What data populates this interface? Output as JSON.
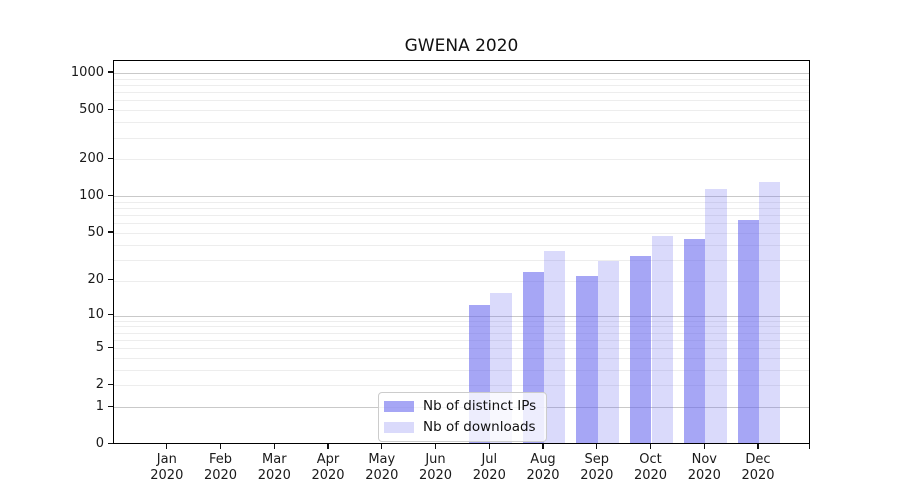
{
  "title": "GWENA 2020",
  "chart_data": {
    "type": "bar",
    "title": "GWENA 2020",
    "xlabel": "",
    "ylabel": "",
    "y_scale": "symlog (position proportional to ln(1+v))",
    "ylim": [
      0,
      1250
    ],
    "grid": "both (major lines at powers of 10, faint minors at 2-9 per decade)",
    "legend_position": "inside bottom-center",
    "categories": [
      "Jan 2020",
      "Feb 2020",
      "Mar 2020",
      "Apr 2020",
      "May 2020",
      "Jun 2020",
      "Jul 2020",
      "Aug 2020",
      "Sep 2020",
      "Oct 2020",
      "Nov 2020",
      "Dec 2020"
    ],
    "y_tick_labels": [
      "1000",
      "500",
      "200",
      "100",
      "50",
      "20",
      "10",
      "5",
      "2",
      "1",
      "0"
    ],
    "y_tick_values": [
      1000,
      500,
      200,
      100,
      50,
      20,
      10,
      5,
      2,
      1,
      0
    ],
    "series": [
      {
        "name": "Nb of distinct IPs",
        "color": "#6666ee",
        "alpha": 0.58,
        "values": [
          0,
          0,
          0,
          0,
          0,
          0,
          12,
          23,
          21,
          31,
          43,
          62
        ]
      },
      {
        "name": "Nb of downloads",
        "color": "#6666ee",
        "alpha": 0.24,
        "values": [
          0,
          0,
          0,
          0,
          0,
          0,
          15,
          34,
          28,
          46,
          110,
          125
        ]
      }
    ],
    "major_grid_values": [
      1,
      10,
      100,
      1000
    ],
    "minor_grid_base_values": [
      2,
      3,
      4,
      5,
      6,
      7,
      8,
      9
    ]
  }
}
